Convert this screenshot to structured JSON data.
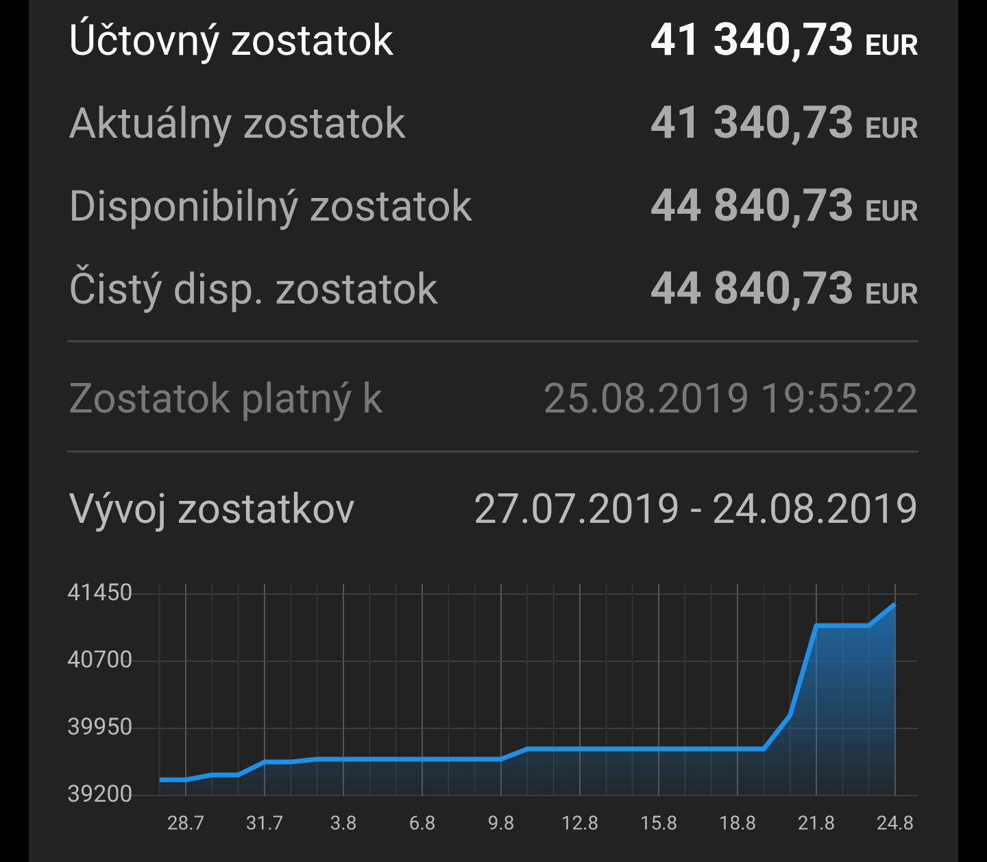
{
  "balances": [
    {
      "label": "Účtovný zostatok",
      "amount": "41 340,73",
      "currency": "EUR"
    },
    {
      "label": "Aktuálny zostatok",
      "amount": "41 340,73",
      "currency": "EUR"
    },
    {
      "label": "Disponibilný zostatok",
      "amount": "44 840,73",
      "currency": "EUR"
    },
    {
      "label": "Čistý disp. zostatok",
      "amount": "44 840,73",
      "currency": "EUR"
    }
  ],
  "valid_at": {
    "label": "Zostatok platný k",
    "value": "25.08.2019 19:55:22"
  },
  "history": {
    "label": "Vývoj zostatkov",
    "period": "27.07.2019 - 24.08.2019"
  },
  "chart_data": {
    "type": "area",
    "categories": [
      null,
      "28.7",
      null,
      null,
      "31.7",
      null,
      null,
      "3.8",
      null,
      null,
      "6.8",
      null,
      null,
      "9.8",
      null,
      null,
      "12.8",
      null,
      null,
      "15.8",
      null,
      null,
      "18.8",
      null,
      null,
      "21.8",
      null,
      null,
      "24.8"
    ],
    "series": [
      {
        "color": "#1e90e8",
        "values": [
          39376,
          39376,
          39430,
          39430,
          39575,
          39575,
          39606,
          39606,
          39606,
          39606,
          39606,
          39606,
          39606,
          39606,
          39720,
          39720,
          39720,
          39720,
          39720,
          39720,
          39720,
          39720,
          39720,
          39720,
          40095,
          41098,
          41098,
          41098,
          41341
        ]
      }
    ],
    "ylim": [
      39200,
      41565
    ],
    "yticks": [
      39200,
      39950,
      40700,
      41450
    ],
    "grid": true
  }
}
